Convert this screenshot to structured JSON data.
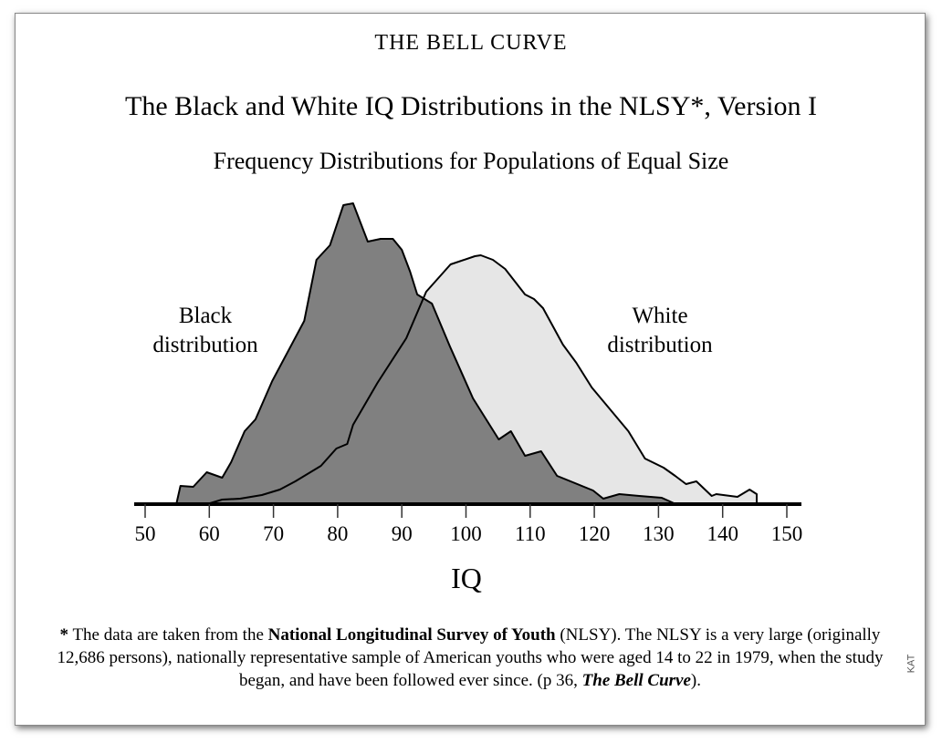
{
  "header": {
    "book": "THE BELL CURVE"
  },
  "chart_data": {
    "type": "area",
    "title": "The Black and White IQ Distributions in the NLSY*, Version I",
    "subtitle": "Frequency Distributions for Populations of Equal Size",
    "xlabel": "IQ",
    "ylabel": "",
    "xlim": [
      50,
      150
    ],
    "ylim": [
      0,
      35
    ],
    "xticks": [
      50,
      60,
      70,
      80,
      90,
      100,
      110,
      120,
      130,
      140,
      150
    ],
    "grid": false,
    "series": [
      {
        "name": "Black distribution",
        "color": "#808080",
        "x": [
          54.9,
          55.5,
          57.5,
          59.6,
          62.0,
          63.4,
          65.5,
          67.2,
          69.8,
          74.8,
          76.7,
          78.8,
          80.9,
          82.4,
          84.7,
          86.7,
          88.6,
          90.0,
          91.3,
          92.4,
          94.7,
          97.5,
          101.1,
          105.1,
          107.0,
          109.2,
          111.7,
          114.2,
          119.8,
          121.4,
          123.9,
          127.0,
          130.5,
          132.4
        ],
        "y": [
          0.1,
          2.0,
          1.9,
          3.5,
          2.9,
          4.6,
          8.0,
          9.3,
          13.5,
          20.1,
          26.8,
          28.4,
          32.8,
          33.0,
          28.8,
          29.1,
          29.1,
          27.9,
          25.5,
          23.0,
          22.0,
          17.3,
          11.6,
          7.1,
          8.0,
          5.3,
          5.8,
          3.1,
          1.5,
          0.6,
          1.1,
          0.9,
          0.7,
          0.1
        ]
      },
      {
        "name": "White distribution",
        "color": "#e6e6e6",
        "x": [
          60.1,
          62.0,
          64.8,
          68.2,
          71.0,
          73.4,
          77.4,
          79.8,
          81.5,
          82.4,
          86.2,
          90.7,
          93.8,
          97.6,
          101.4,
          102.3,
          104.2,
          106.1,
          109.2,
          110.6,
          112.0,
          115.1,
          117.2,
          119.6,
          125.3,
          127.9,
          130.8,
          132.6,
          134.3,
          135.9,
          138.3,
          139.0,
          142.3,
          144.2,
          145.3,
          145.3
        ],
        "y": [
          0.1,
          0.5,
          0.6,
          1.0,
          1.6,
          2.5,
          4.2,
          6.1,
          6.6,
          8.7,
          13.3,
          18.2,
          23.3,
          26.3,
          27.2,
          27.3,
          26.8,
          25.8,
          23.0,
          22.5,
          21.5,
          17.5,
          15.5,
          12.8,
          8.0,
          5.0,
          4.0,
          3.1,
          2.2,
          2.5,
          0.9,
          1.1,
          0.8,
          1.6,
          1.1,
          0
        ]
      }
    ],
    "annotations": [
      {
        "line1": "Black",
        "line2": "distribution"
      },
      {
        "line1": "White",
        "line2": "distribution"
      }
    ]
  },
  "footnote": {
    "star": "*",
    "t1": " The data are taken from the ",
    "b1": "National Longitudinal Survey of Youth",
    "t2": " (NLSY). The NLSY is a very large (originally 12,686 persons), nationally representative sample of American youths who were aged 14 to 22 in 1979, when the study began, and have been followed ever since. (p 36, ",
    "b2": "The Bell Curve",
    "t3": ")."
  },
  "credit": "KAT"
}
